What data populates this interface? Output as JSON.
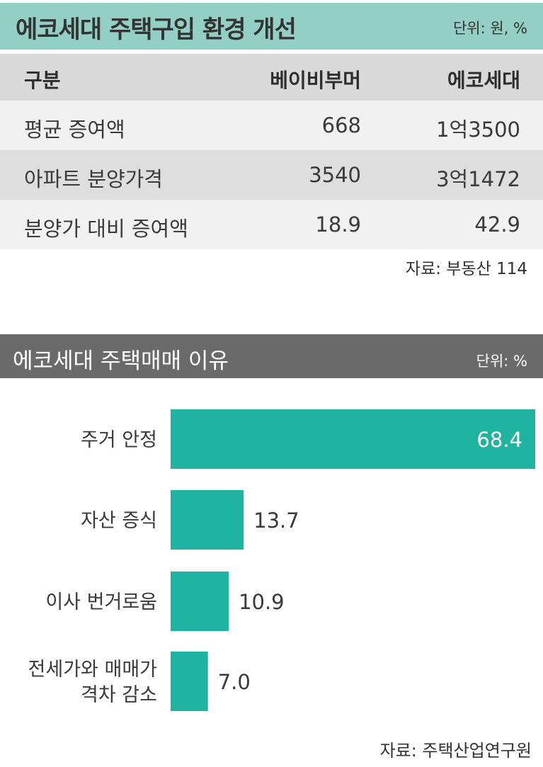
{
  "table": {
    "title": "에코세대 주택구입 환경 개선",
    "unit": "단위: 원, %",
    "headers": [
      "구분",
      "베이비부머",
      "에코세대"
    ],
    "rows": [
      [
        "평균 증여액",
        "668",
        "1억3500"
      ],
      [
        "아파트 분양가격",
        "3540",
        "3억1472"
      ],
      [
        "분양가 대비 증여액",
        "18.9",
        "42.9"
      ]
    ],
    "source": "자료: 부동산 114"
  },
  "chart_section": {
    "title": "에코세대 주택매매 이유",
    "unit": "단위: %",
    "source": "자료: 주택산업연구원"
  },
  "colors": {
    "table_header": "#93cfc5",
    "chart_header": "#6a6a6a",
    "bar": "#1fb3a2"
  },
  "chart_data": {
    "type": "bar",
    "orientation": "horizontal",
    "title": "에코세대 주택매매 이유",
    "categories": [
      "주거 안정",
      "자산 증식",
      "이사 번거로움",
      "전세가와 매매가 격차 감소"
    ],
    "category_lines": [
      [
        "주거 안정"
      ],
      [
        "자산 증식"
      ],
      [
        "이사 번거로움"
      ],
      [
        "전세가와 매매가",
        "격차 감소"
      ]
    ],
    "values": [
      68.4,
      13.7,
      10.9,
      7.0
    ],
    "value_labels": [
      "68.4",
      "13.7",
      "10.9",
      "7.0"
    ],
    "unit": "%",
    "xlim": [
      0,
      68.4
    ],
    "grid": false,
    "legend": "none"
  }
}
